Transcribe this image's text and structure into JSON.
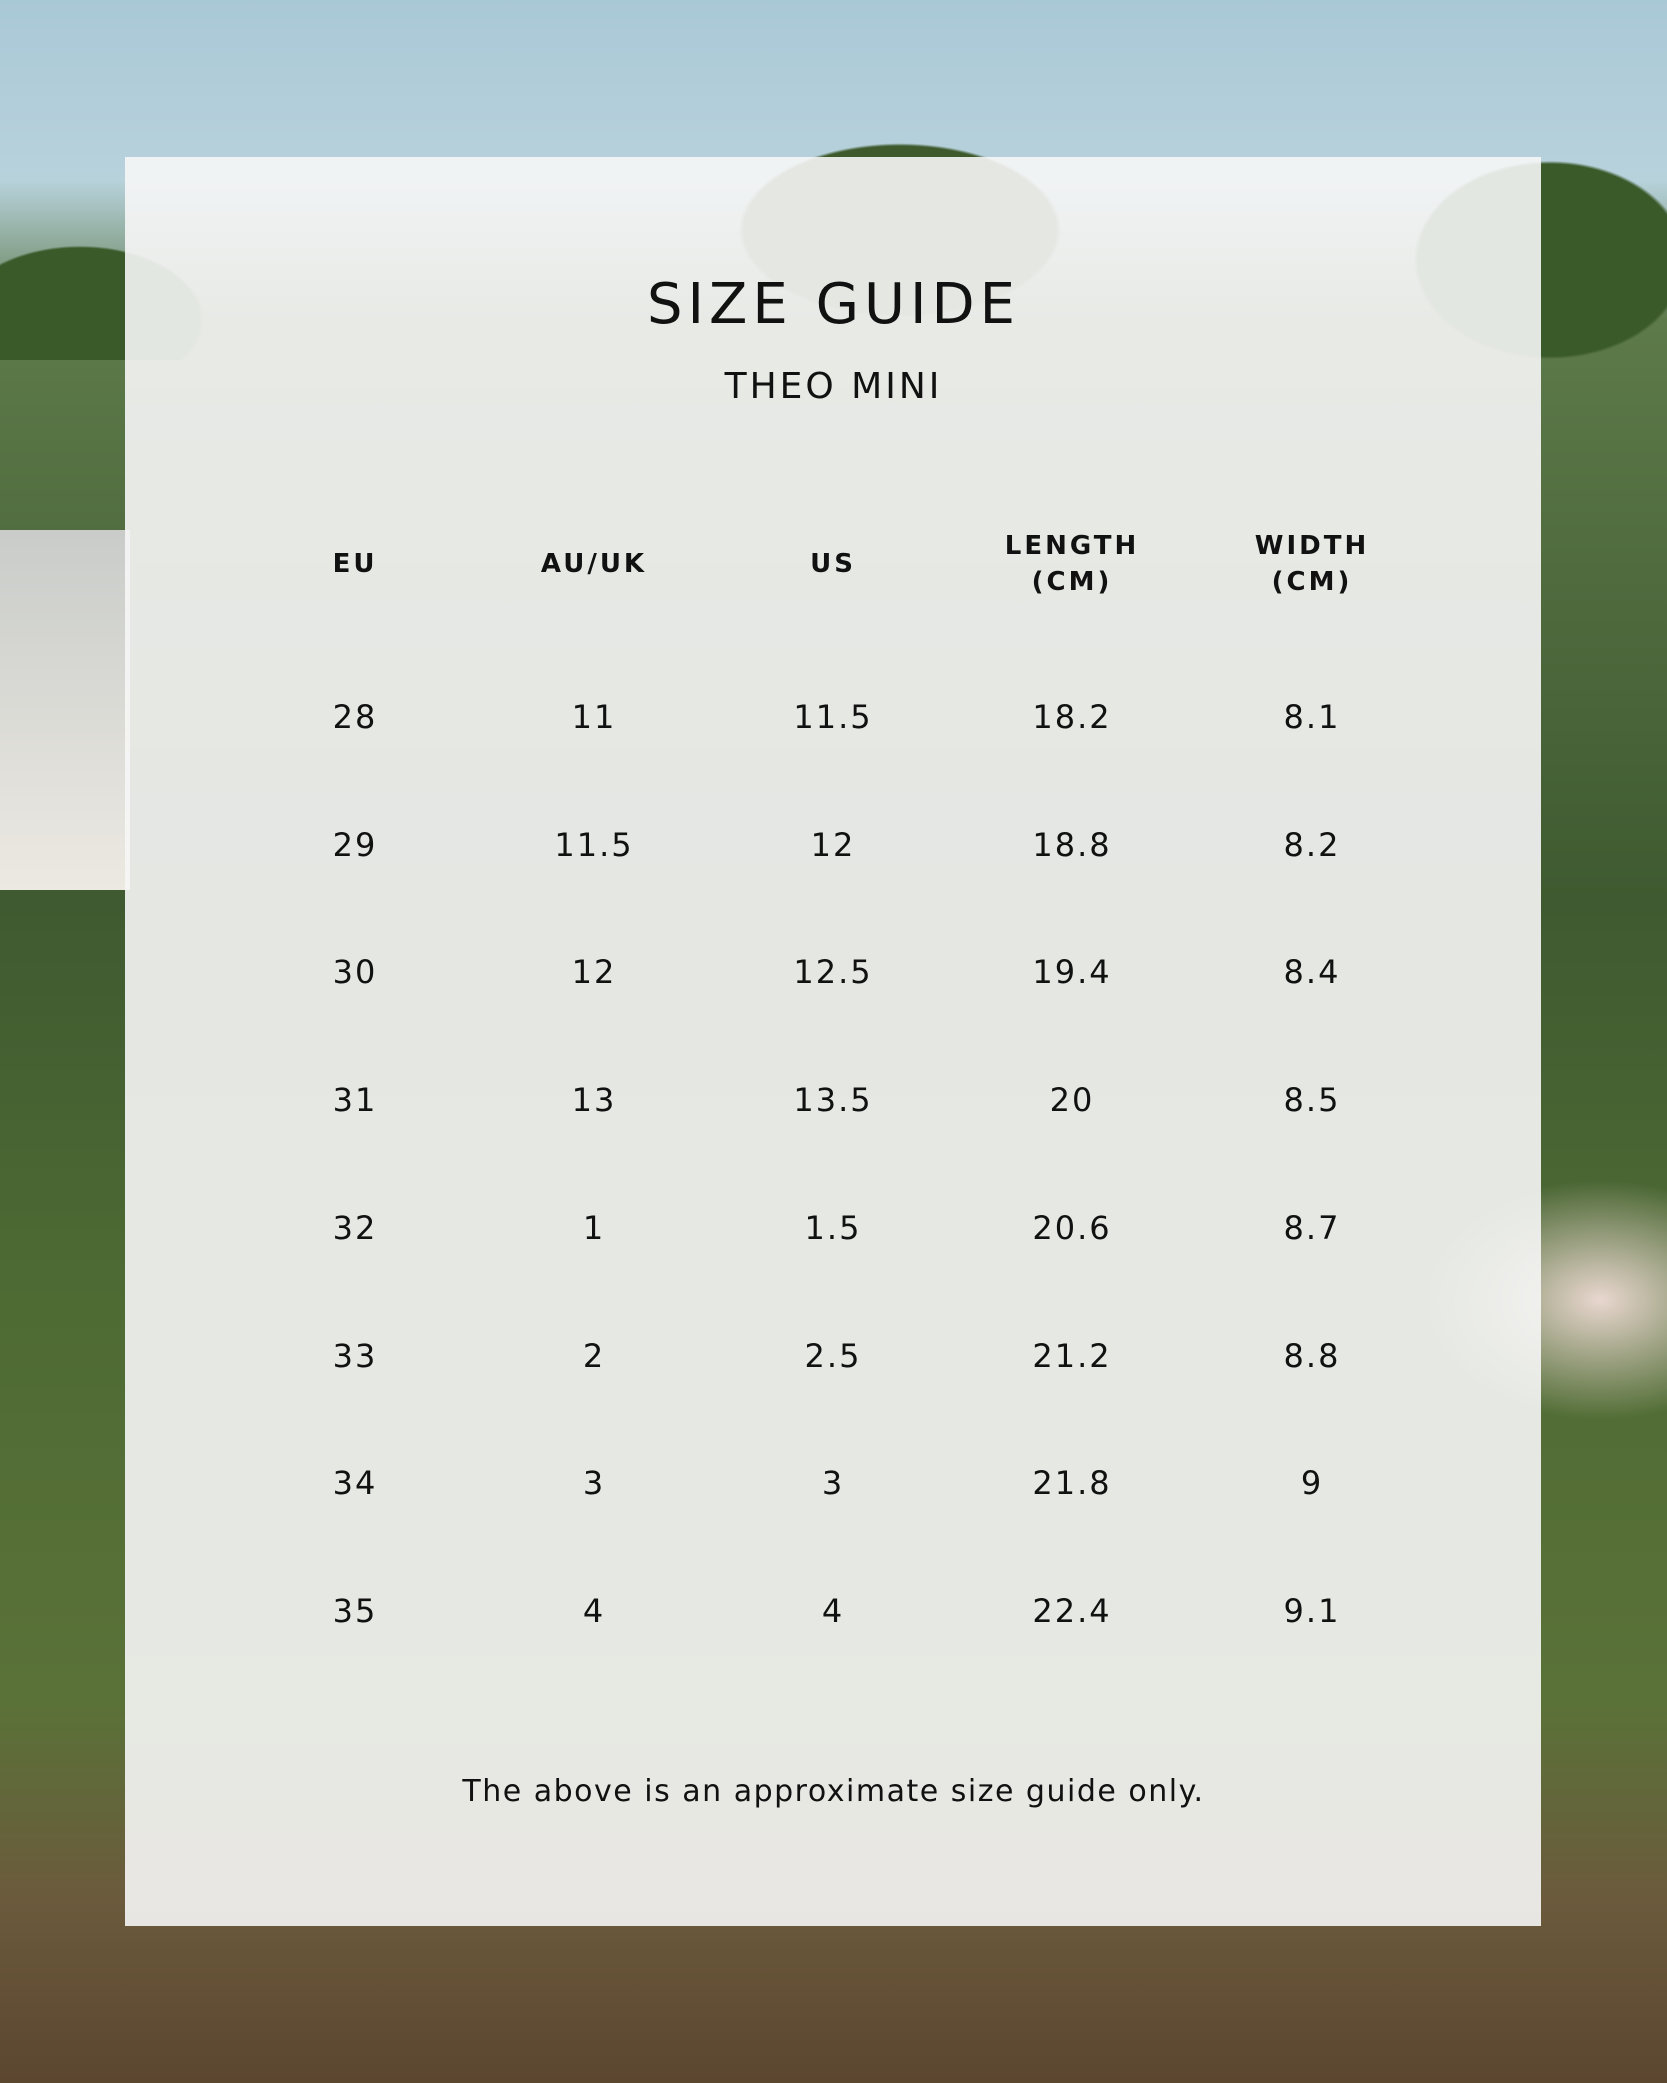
{
  "title": "SIZE GUIDE",
  "subtitle": "THEO MINI",
  "columns": [
    "EU",
    "AU/UK",
    "US",
    "LENGTH\n(CM)",
    "WIDTH\n(CM)"
  ],
  "rows": [
    [
      "28",
      "11",
      "11.5",
      "18.2",
      "8.1"
    ],
    [
      "29",
      "11.5",
      "12",
      "18.8",
      "8.2"
    ],
    [
      "30",
      "12",
      "12.5",
      "19.4",
      "8.4"
    ],
    [
      "31",
      "13",
      "13.5",
      "20",
      "8.5"
    ],
    [
      "32",
      "1",
      "1.5",
      "20.6",
      "8.7"
    ],
    [
      "33",
      "2",
      "2.5",
      "21.2",
      "8.8"
    ],
    [
      "34",
      "3",
      "3",
      "21.8",
      "9"
    ],
    [
      "35",
      "4",
      "4",
      "22.4",
      "9.1"
    ]
  ],
  "footer": "The above is an approximate size guide only."
}
